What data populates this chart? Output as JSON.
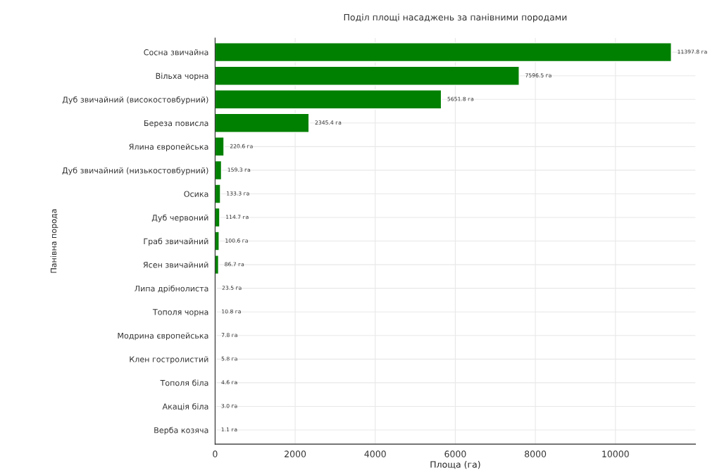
{
  "chart_data": {
    "type": "bar",
    "orientation": "horizontal",
    "title": "Поділ площі насаджень за панівними породами",
    "xlabel": "Площа (га)",
    "ylabel": "Панівна порода",
    "categories": [
      "Сосна звичайна",
      "Вільха чорна",
      "Дуб звичайний (високостовбурний)",
      "Береза повисла",
      "Ялина європейська",
      "Дуб звичайний (низькостовбурний)",
      "Осика",
      "Дуб червоний",
      "Граб звичайний",
      "Ясен звичайний",
      "Липа дрібнолиста",
      "Тополя чорна",
      "Модрина європейська",
      "Клен гостролистий",
      "Тополя біла",
      "Акація біла",
      "Верба козяча"
    ],
    "values": [
      11397.8,
      7596.5,
      5651.8,
      2345.4,
      220.6,
      159.3,
      133.3,
      114.7,
      100.6,
      86.7,
      23.5,
      10.8,
      7.8,
      5.8,
      4.6,
      3.0,
      1.1
    ],
    "value_labels": [
      "11397.8 га",
      "7596.5 га",
      "5651.8 га",
      "2345.4 га",
      "220.6 га",
      "159.3 га",
      "133.3 га",
      "114.7 га",
      "100.6 га",
      "86.7 га",
      "23.5 га",
      "10.8 га",
      "7.8 га",
      "5.8 га",
      "4.6 га",
      "3.0 га",
      "1.1 га"
    ],
    "color": "#008000",
    "xlim": [
      0,
      12000
    ],
    "xticks": [
      0,
      2000,
      4000,
      6000,
      8000,
      10000
    ],
    "grid": true
  }
}
